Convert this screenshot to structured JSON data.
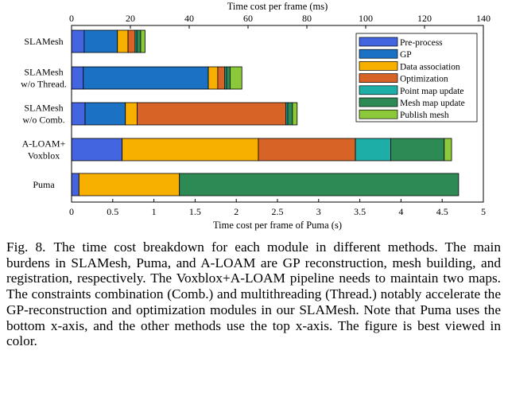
{
  "chart_data": {
    "type": "bar",
    "orientation": "horizontal",
    "stacked": true,
    "title": "",
    "top_axis_label": "Time cost per frame (ms)",
    "top_axis": {
      "range": [
        0,
        140
      ],
      "ticks": [
        0,
        20,
        40,
        60,
        80,
        100,
        120,
        140
      ]
    },
    "bottom_axis_label": "Time cost per frame of Puma (s)",
    "bottom_axis": {
      "range": [
        0,
        5
      ],
      "ticks": [
        0,
        0.5,
        1,
        1.5,
        2,
        2.5,
        3,
        3.5,
        4,
        4.5,
        5
      ]
    },
    "categories": [
      {
        "lines": [
          "SLAMesh"
        ],
        "axis": "top"
      },
      {
        "lines": [
          "SLAMesh",
          "w/o Thread."
        ],
        "axis": "top"
      },
      {
        "lines": [
          "SLAMesh",
          "w/o Comb."
        ],
        "axis": "top"
      },
      {
        "lines": [
          "A-LOAM+",
          "Voxblox"
        ],
        "axis": "top"
      },
      {
        "lines": [
          "Puma"
        ],
        "axis": "bottom"
      }
    ],
    "series": [
      {
        "name": "Pre-process",
        "color": "#4365df",
        "values": [
          4.3,
          4.0,
          4.6,
          17.2,
          0.09
        ]
      },
      {
        "name": "GP",
        "color": "#1b72c5",
        "values": [
          11.3,
          42.5,
          13.7,
          0,
          0
        ]
      },
      {
        "name": "Data association",
        "color": "#f8b000",
        "values": [
          3.6,
          3.2,
          4.0,
          46.3,
          1.22
        ]
      },
      {
        "name": "Optimization",
        "color": "#d76426",
        "values": [
          2.4,
          2.4,
          50.6,
          33.0,
          0
        ]
      },
      {
        "name": "Point map update",
        "color": "#1eaea8",
        "values": [
          0.6,
          0.6,
          0.6,
          12.0,
          0
        ]
      },
      {
        "name": "Mesh map update",
        "color": "#2e8a55",
        "values": [
          1.3,
          1.2,
          1.6,
          18.2,
          3.39
        ]
      },
      {
        "name": "Publish mesh",
        "color": "#8cc93a",
        "values": [
          1.5,
          4.0,
          1.6,
          2.5,
          0
        ]
      }
    ],
    "legend": "top-right",
    "grid": false
  },
  "caption": {
    "label": "Fig. 8.",
    "text": "The time cost breakdown for each module in different methods. The main burdens in SLAMesh, Puma, and A-LOAM are GP reconstruction, mesh building, and registration, respectively. The Voxblox+A-LOAM pipeline needs to maintain two maps. The constraints combination (Comb.) and multithreading (Thread.) notably accelerate the GP-reconstruction and optimization modules in our SLAMesh. Note that Puma uses the bottom x-axis, and the other methods use the top x-axis. The figure is best viewed in color."
  }
}
